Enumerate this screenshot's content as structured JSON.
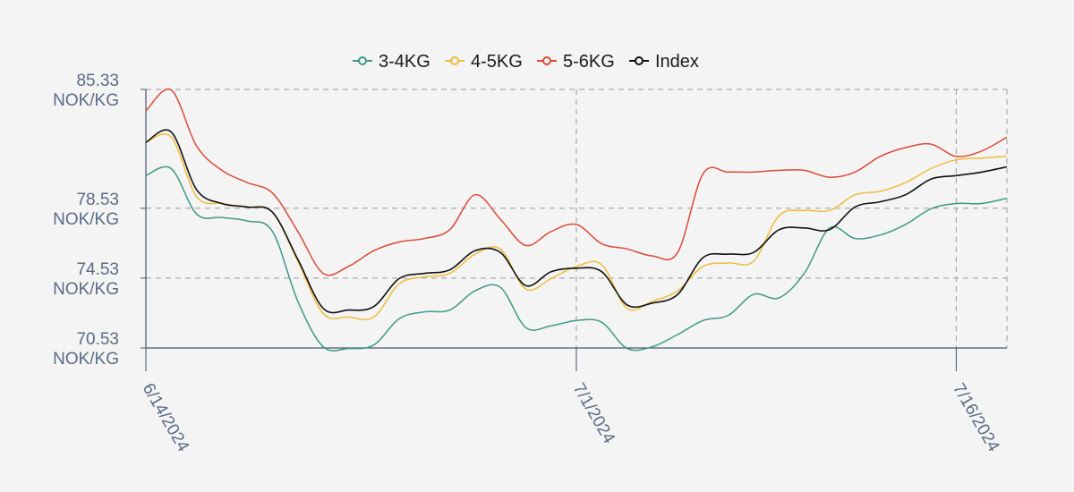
{
  "chart_data": {
    "type": "line",
    "x": [
      "2024-06-14",
      "2024-06-15",
      "2024-06-16",
      "2024-06-17",
      "2024-06-18",
      "2024-06-19",
      "2024-06-20",
      "2024-06-21",
      "2024-06-22",
      "2024-06-23",
      "2024-06-24",
      "2024-06-25",
      "2024-06-26",
      "2024-06-27",
      "2024-06-28",
      "2024-06-29",
      "2024-06-30",
      "2024-07-01",
      "2024-07-02",
      "2024-07-03",
      "2024-07-04",
      "2024-07-05",
      "2024-07-06",
      "2024-07-07",
      "2024-07-08",
      "2024-07-09",
      "2024-07-10",
      "2024-07-11",
      "2024-07-12",
      "2024-07-13",
      "2024-07-14",
      "2024-07-15",
      "2024-07-16",
      "2024-07-17",
      "2024-07-18"
    ],
    "series": [
      {
        "name": "3-4KG",
        "color": "#3d9a86",
        "values": [
          80.4,
          80.8,
          78.2,
          78.0,
          77.8,
          77.2,
          73.2,
          70.6,
          70.5,
          70.7,
          72.2,
          72.6,
          72.7,
          73.8,
          74.0,
          71.7,
          71.8,
          72.1,
          72.0,
          70.5,
          70.6,
          71.3,
          72.1,
          72.4,
          73.6,
          73.4,
          74.8,
          77.4,
          76.8,
          77.0,
          77.6,
          78.5,
          78.8,
          78.8,
          79.1
        ]
      },
      {
        "name": "4-5KG",
        "color": "#f0bc3a",
        "values": [
          82.3,
          82.6,
          79.2,
          78.8,
          78.6,
          78.3,
          75.5,
          72.5,
          72.3,
          72.3,
          74.2,
          74.6,
          74.8,
          75.9,
          76.2,
          73.9,
          74.5,
          75.2,
          75.3,
          72.8,
          73.2,
          73.8,
          75.2,
          75.4,
          75.5,
          78.1,
          78.4,
          78.4,
          79.3,
          79.5,
          80.0,
          80.8,
          81.3,
          81.4,
          81.5
        ]
      },
      {
        "name": "5-6KG",
        "color": "#dc4a35",
        "values": [
          84.1,
          85.3,
          82.1,
          80.7,
          80.0,
          79.4,
          77.2,
          74.8,
          75.2,
          76.1,
          76.6,
          76.8,
          77.3,
          79.3,
          77.9,
          76.4,
          77.2,
          77.6,
          76.5,
          76.2,
          75.8,
          76.0,
          80.5,
          80.6,
          80.6,
          80.7,
          80.7,
          80.3,
          80.6,
          81.5,
          82.0,
          82.2,
          81.5,
          81.8,
          82.6
        ]
      },
      {
        "name": "Index",
        "color": "#111111",
        "values": [
          82.3,
          82.9,
          79.6,
          78.8,
          78.6,
          78.3,
          75.6,
          72.8,
          72.7,
          72.9,
          74.5,
          74.8,
          75.0,
          76.1,
          76.0,
          74.1,
          74.9,
          75.1,
          74.9,
          73.0,
          73.1,
          73.6,
          75.7,
          75.9,
          76.0,
          77.3,
          77.4,
          77.3,
          78.6,
          78.9,
          79.3,
          80.2,
          80.4,
          80.6,
          80.9
        ]
      }
    ],
    "y_ticks": [
      70.53,
      74.53,
      78.53,
      85.33
    ],
    "y_tick_unit": "NOK/KG",
    "ylim": [
      70.53,
      85.33
    ],
    "x_ticks": [
      "6/14/2024",
      "7/1/2024",
      "7/16/2024"
    ],
    "xlim": [
      "2024-06-14",
      "2024-07-18"
    ],
    "xlabel": "",
    "ylabel": "",
    "title": "",
    "legend_position": "top-center",
    "grid": true
  }
}
